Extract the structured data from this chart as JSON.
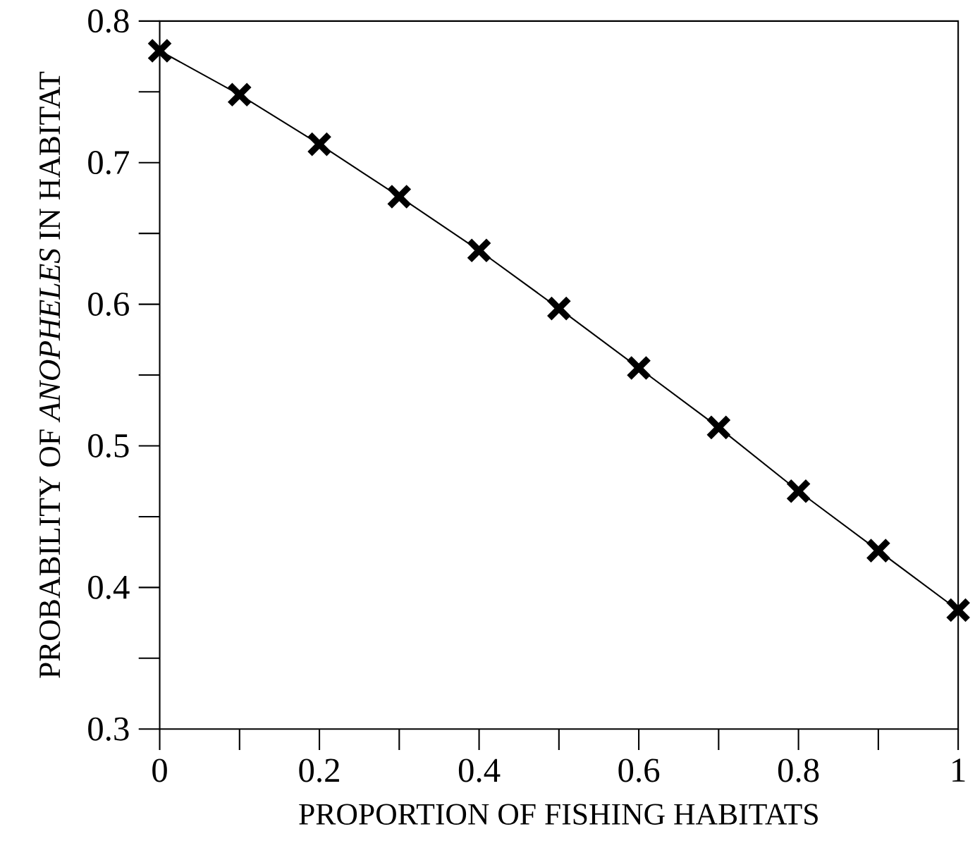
{
  "chart_data": {
    "type": "line",
    "xlabel": "PROPORTION OF FISHING HABITATS",
    "ylabel": "PROBABILITY OF *ANOPHELES* IN HABITAT",
    "x": [
      0,
      0.1,
      0.2,
      0.3,
      0.4,
      0.5,
      0.6,
      0.7,
      0.8,
      0.9,
      1
    ],
    "series": [
      {
        "color": "#000000",
        "values": [
          0.779,
          0.748,
          0.713,
          0.676,
          0.638,
          0.597,
          0.555,
          0.513,
          0.468,
          0.426,
          0.384
        ]
      }
    ],
    "xlim": [
      0,
      1
    ],
    "ylim": [
      0.3,
      0.8
    ],
    "xticks": [
      0,
      0.2,
      0.4,
      0.6,
      0.8,
      1
    ],
    "yticks": [
      0.3,
      0.4,
      0.5,
      0.6,
      0.7,
      0.8
    ],
    "marker": "cross",
    "line_style": "solid"
  }
}
